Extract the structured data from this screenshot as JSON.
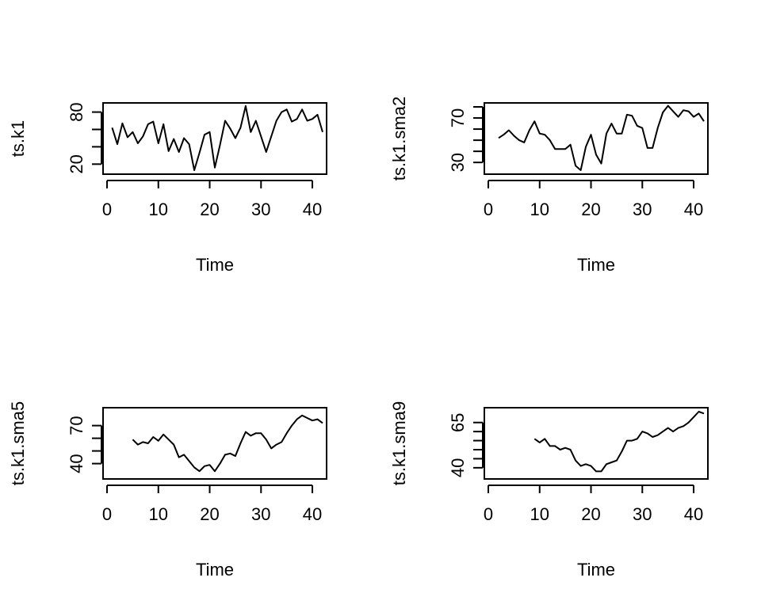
{
  "chart_data": [
    {
      "type": "line",
      "xlabel": "Time",
      "ylabel": "ts.k1",
      "xlim": [
        0,
        42
      ],
      "ylim": [
        13,
        86
      ],
      "x_ticks": [
        0,
        10,
        20,
        30,
        40
      ],
      "y_ticks": [
        20,
        40,
        60,
        80
      ],
      "y_tick_labels": [
        "20",
        "",
        "",
        "80"
      ],
      "series": [
        {
          "x": [
            1,
            2,
            3,
            4,
            5,
            6,
            7,
            8,
            9,
            10,
            11,
            12,
            13,
            14,
            15,
            16,
            17,
            18,
            19,
            20,
            21,
            22,
            23,
            24,
            25,
            26,
            27,
            28,
            29,
            30,
            31,
            32,
            33,
            34,
            35,
            36,
            37,
            38,
            39,
            40,
            41,
            42
          ],
          "values": [
            62,
            43,
            67,
            51,
            57,
            44,
            52,
            66,
            69,
            44,
            66,
            35,
            49,
            34,
            50,
            43,
            13,
            33,
            54,
            57,
            16,
            42,
            70,
            61,
            50,
            62,
            87,
            57,
            70,
            52,
            34,
            52,
            70,
            80,
            83,
            69,
            72,
            83,
            70,
            72,
            77,
            57
          ]
        }
      ]
    },
    {
      "type": "line",
      "xlabel": "Time",
      "ylabel": "ts.k1.sma2",
      "xlim": [
        0,
        42
      ],
      "ylim": [
        23,
        80
      ],
      "x_ticks": [
        0,
        10,
        20,
        30,
        40
      ],
      "y_ticks": [
        30,
        40,
        50,
        60,
        70,
        80
      ],
      "y_tick_labels": [
        "30",
        "",
        "",
        "",
        "70",
        ""
      ],
      "series": [
        {
          "x": [
            2,
            3,
            4,
            5,
            6,
            7,
            8,
            9,
            10,
            11,
            12,
            13,
            14,
            15,
            16,
            17,
            18,
            19,
            20,
            21,
            22,
            23,
            24,
            25,
            26,
            27,
            28,
            29,
            30,
            31,
            32,
            33,
            34,
            35,
            36,
            37,
            38,
            39,
            40,
            41,
            42
          ],
          "values": [
            52,
            55,
            59,
            54,
            50,
            48,
            59,
            67,
            56,
            55,
            50,
            42,
            42,
            42,
            46,
            27,
            23,
            44,
            55,
            37,
            29,
            56,
            65,
            56,
            56,
            73,
            72,
            63,
            61,
            43,
            43,
            61,
            75,
            81,
            76,
            71,
            77,
            76,
            71,
            74,
            67
          ]
        }
      ]
    },
    {
      "type": "line",
      "xlabel": "Time",
      "ylabel": "ts.k1.sma5",
      "xlim": [
        0,
        42
      ],
      "ylim": [
        31,
        81
      ],
      "x_ticks": [
        0,
        10,
        20,
        30,
        40
      ],
      "y_ticks": [
        40,
        50,
        60,
        70
      ],
      "y_tick_labels": [
        "40",
        "",
        "",
        "70"
      ],
      "series": [
        {
          "x": [
            5,
            6,
            7,
            8,
            9,
            10,
            11,
            12,
            13,
            14,
            15,
            16,
            17,
            18,
            19,
            20,
            21,
            22,
            23,
            24,
            25,
            26,
            27,
            28,
            29,
            30,
            31,
            32,
            33,
            34,
            35,
            36,
            37,
            38,
            39,
            40,
            41,
            42
          ],
          "values": [
            59,
            55,
            57,
            56,
            61,
            58,
            63,
            59,
            55,
            45,
            47,
            42,
            37,
            34,
            38,
            39,
            34,
            40,
            47,
            48,
            46,
            56,
            65,
            62,
            64,
            64,
            59,
            52,
            55,
            57,
            64,
            70,
            75,
            78,
            76,
            74,
            75,
            72
          ]
        }
      ]
    },
    {
      "type": "line",
      "xlabel": "Time",
      "ylabel": "ts.k1.sma9",
      "xlim": [
        0,
        42
      ],
      "ylim": [
        36,
        71
      ],
      "x_ticks": [
        0,
        10,
        20,
        30,
        40
      ],
      "y_ticks": [
        40,
        45,
        50,
        55,
        60,
        65
      ],
      "y_tick_labels": [
        "40",
        "",
        "",
        "",
        "",
        "65"
      ],
      "series": [
        {
          "x": [
            9,
            10,
            11,
            12,
            13,
            14,
            15,
            16,
            17,
            18,
            19,
            20,
            21,
            22,
            23,
            24,
            25,
            26,
            27,
            28,
            29,
            30,
            31,
            32,
            33,
            34,
            35,
            36,
            37,
            38,
            39,
            40,
            41,
            42
          ],
          "values": [
            56,
            54,
            56,
            52,
            52,
            50,
            51,
            50,
            44,
            41,
            42,
            41,
            38,
            38,
            42,
            43,
            44,
            49,
            55,
            55,
            56,
            60,
            59,
            57,
            58,
            60,
            62,
            60,
            62,
            63,
            65,
            68,
            71,
            70
          ]
        }
      ]
    }
  ]
}
